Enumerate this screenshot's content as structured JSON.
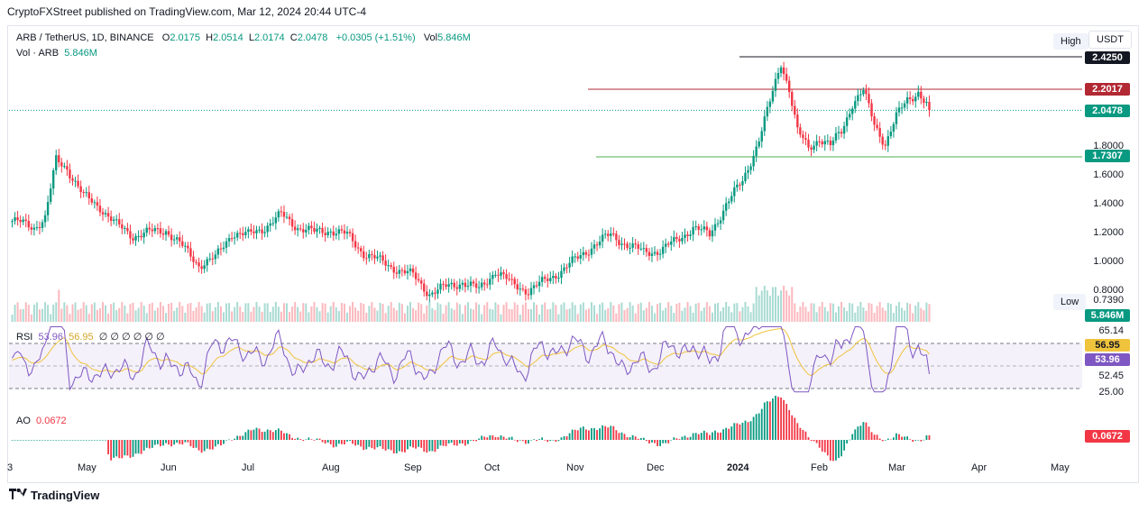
{
  "header": {
    "publisher_line": "CryptoFXStreet published on TradingView.com, Mar 12, 2024 20:44 UTC-4"
  },
  "legend": {
    "symbol": "ARB / TetherUS, 1D, BINANCE",
    "open_label": "O",
    "open": "2.0175",
    "high_label": "H",
    "high": "2.0514",
    "low_label": "L",
    "low": "2.0174",
    "close_label": "C",
    "close": "2.0478",
    "change": "+0.0305 (+1.51%)",
    "vol_label": "Vol",
    "vol": "5.846M",
    "vol_line_label": "Vol · ARB",
    "vol_line_value": "5.846M"
  },
  "rsi_legend": {
    "label": "RSI",
    "value": "53.96",
    "ma_value": "56.95",
    "placeholders": "∅ ∅ ∅ ∅ ∅ ∅"
  },
  "ao_legend": {
    "label": "AO",
    "value": "0.0672"
  },
  "buttons": {
    "high": "High",
    "currency": "USDT",
    "low": "Low"
  },
  "price_axis": {
    "ticks": [
      "1.8000",
      "1.6000",
      "1.4000",
      "1.2000",
      "1.0000",
      "0.8000"
    ],
    "low_value": "0.7390",
    "tags": [
      {
        "label": "2.4250",
        "color": "#131722"
      },
      {
        "label": "2.2017",
        "color": "#b22833"
      },
      {
        "label": "2.0478",
        "color": "#089981"
      },
      {
        "label": "1.7307",
        "color": "#089981"
      }
    ],
    "volume_tag": "5.846M"
  },
  "rsi_axis": {
    "ticks": [
      "65.14",
      "52.45",
      "25.00"
    ],
    "ma_tag": "56.95",
    "value_tag": "53.96"
  },
  "ao_axis": {
    "tag": "0.0672"
  },
  "time_axis": [
    "3",
    "May",
    "Jun",
    "Jul",
    "Aug",
    "Sep",
    "Oct",
    "Nov",
    "Dec",
    "2024",
    "Feb",
    "Mar",
    "Apr",
    "May"
  ],
  "levels": {
    "resistance_top": 2.425,
    "resistance": 2.2017,
    "last": 2.0478,
    "support": 1.7307
  },
  "colors": {
    "up": "#089981",
    "down": "#f23645",
    "rsi": "#7e57c2",
    "rsi_ma": "#f0c33c",
    "resistance": "#b22833",
    "support": "#4caf50"
  },
  "footer": {
    "brand": "TradingView"
  }
}
